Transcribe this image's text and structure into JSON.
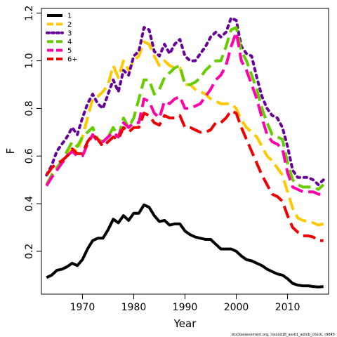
{
  "chart_data": {
    "type": "line",
    "title": "",
    "xlabel": "Year",
    "ylabel": "F",
    "xlim": [
      1962,
      2018
    ],
    "ylim": [
      0.02,
      1.22
    ],
    "x_ticks": [
      1970,
      1980,
      1990,
      2000,
      2010
    ],
    "y_ticks": [
      0.2,
      0.4,
      0.6,
      0.8,
      1.0,
      1.2
    ],
    "x_tick_labels": [
      "1970",
      "1980",
      "1990",
      "2000",
      "2010"
    ],
    "y_tick_labels": [
      "0.2",
      "0.4",
      "0.6",
      "0.8",
      "1.0",
      "1.2"
    ],
    "grid": false,
    "legend_position": "top-left",
    "footer": "stockassessment.org, rsscod18_ass01_admb_check, r9845",
    "x": [
      1963,
      1964,
      1965,
      1966,
      1967,
      1968,
      1969,
      1970,
      1971,
      1972,
      1973,
      1974,
      1975,
      1976,
      1977,
      1978,
      1979,
      1980,
      1981,
      1982,
      1983,
      1984,
      1985,
      1986,
      1987,
      1988,
      1989,
      1990,
      1991,
      1992,
      1993,
      1994,
      1995,
      1996,
      1997,
      1998,
      1999,
      2000,
      2001,
      2002,
      2003,
      2004,
      2005,
      2006,
      2007,
      2008,
      2009,
      2010,
      2011,
      2012,
      2013,
      2014,
      2015,
      2016,
      2017
    ],
    "series": [
      {
        "name": "1",
        "color": "#000000",
        "dash": "solid",
        "values": [
          0.09,
          0.1,
          0.12,
          0.125,
          0.135,
          0.15,
          0.14,
          0.165,
          0.21,
          0.245,
          0.255,
          0.255,
          0.29,
          0.335,
          0.32,
          0.35,
          0.33,
          0.36,
          0.36,
          0.395,
          0.385,
          0.35,
          0.325,
          0.33,
          0.31,
          0.315,
          0.315,
          0.285,
          0.27,
          0.26,
          0.255,
          0.25,
          0.25,
          0.23,
          0.21,
          0.21,
          0.21,
          0.2,
          0.18,
          0.165,
          0.16,
          0.15,
          0.14,
          0.125,
          0.115,
          0.105,
          0.1,
          0.085,
          0.065,
          0.058,
          0.055,
          0.055,
          0.052,
          0.05,
          0.052
        ]
      },
      {
        "name": "2",
        "color": "#FFC800",
        "dash": "dashed",
        "values": [
          0.48,
          0.52,
          0.55,
          0.58,
          0.6,
          0.63,
          0.62,
          0.68,
          0.76,
          0.84,
          0.85,
          0.87,
          0.9,
          0.98,
          0.93,
          1.0,
          0.96,
          1.0,
          1.02,
          1.08,
          1.07,
          1.02,
          0.98,
          1.0,
          0.98,
          0.97,
          0.97,
          0.9,
          0.9,
          0.88,
          0.87,
          0.86,
          0.84,
          0.83,
          0.82,
          0.82,
          0.82,
          0.8,
          0.75,
          0.72,
          0.7,
          0.68,
          0.64,
          0.6,
          0.58,
          0.55,
          0.52,
          0.45,
          0.38,
          0.34,
          0.33,
          0.325,
          0.32,
          0.31,
          0.315
        ]
      },
      {
        "name": "3",
        "color": "#660099",
        "dash": "dotted",
        "values": [
          0.52,
          0.56,
          0.62,
          0.65,
          0.68,
          0.72,
          0.69,
          0.76,
          0.82,
          0.86,
          0.82,
          0.8,
          0.86,
          0.92,
          0.87,
          0.96,
          0.94,
          1.02,
          1.04,
          1.14,
          1.13,
          1.04,
          1.02,
          1.07,
          1.03,
          1.07,
          1.09,
          1.02,
          1.0,
          1.0,
          1.03,
          1.06,
          1.1,
          1.12,
          1.1,
          1.12,
          1.18,
          1.17,
          1.06,
          1.03,
          1.02,
          0.93,
          0.85,
          0.8,
          0.77,
          0.76,
          0.72,
          0.64,
          0.54,
          0.51,
          0.51,
          0.51,
          0.5,
          0.48,
          0.5
        ]
      },
      {
        "name": "4",
        "color": "#66CC00",
        "dash": "dashed",
        "values": [
          0.48,
          0.52,
          0.55,
          0.58,
          0.62,
          0.66,
          0.64,
          0.68,
          0.7,
          0.72,
          0.67,
          0.66,
          0.68,
          0.72,
          0.68,
          0.76,
          0.72,
          0.76,
          0.84,
          0.92,
          0.92,
          0.86,
          0.88,
          0.93,
          0.95,
          0.97,
          0.98,
          0.9,
          0.9,
          0.91,
          0.93,
          0.96,
          0.98,
          1.0,
          1.0,
          1.06,
          1.13,
          1.14,
          1.04,
          1.0,
          0.94,
          0.88,
          0.8,
          0.74,
          0.69,
          0.68,
          0.67,
          0.57,
          0.5,
          0.48,
          0.47,
          0.47,
          0.47,
          0.46,
          0.48
        ]
      },
      {
        "name": "5",
        "color": "#FF00AA",
        "dash": "dashed",
        "values": [
          0.475,
          0.51,
          0.54,
          0.57,
          0.6,
          0.62,
          0.6,
          0.6,
          0.65,
          0.69,
          0.66,
          0.66,
          0.68,
          0.7,
          0.68,
          0.74,
          0.72,
          0.74,
          0.74,
          0.84,
          0.83,
          0.78,
          0.76,
          0.83,
          0.82,
          0.84,
          0.85,
          0.8,
          0.8,
          0.81,
          0.82,
          0.85,
          0.88,
          0.92,
          0.94,
          0.98,
          1.06,
          1.12,
          1.0,
          0.96,
          0.9,
          0.84,
          0.76,
          0.69,
          0.66,
          0.65,
          0.63,
          0.53,
          0.47,
          0.46,
          0.45,
          0.45,
          0.45,
          0.44,
          0.44
        ]
      },
      {
        "name": "6+",
        "color": "#EE0000",
        "dash": "dashed",
        "values": [
          0.52,
          0.55,
          0.57,
          0.58,
          0.6,
          0.63,
          0.61,
          0.61,
          0.66,
          0.69,
          0.67,
          0.64,
          0.66,
          0.68,
          0.67,
          0.72,
          0.7,
          0.72,
          0.72,
          0.78,
          0.77,
          0.74,
          0.73,
          0.77,
          0.76,
          0.76,
          0.77,
          0.72,
          0.72,
          0.71,
          0.7,
          0.7,
          0.71,
          0.74,
          0.74,
          0.76,
          0.79,
          0.78,
          0.72,
          0.67,
          0.62,
          0.57,
          0.52,
          0.48,
          0.44,
          0.43,
          0.41,
          0.35,
          0.3,
          0.28,
          0.265,
          0.265,
          0.26,
          0.245,
          0.245
        ]
      }
    ]
  }
}
